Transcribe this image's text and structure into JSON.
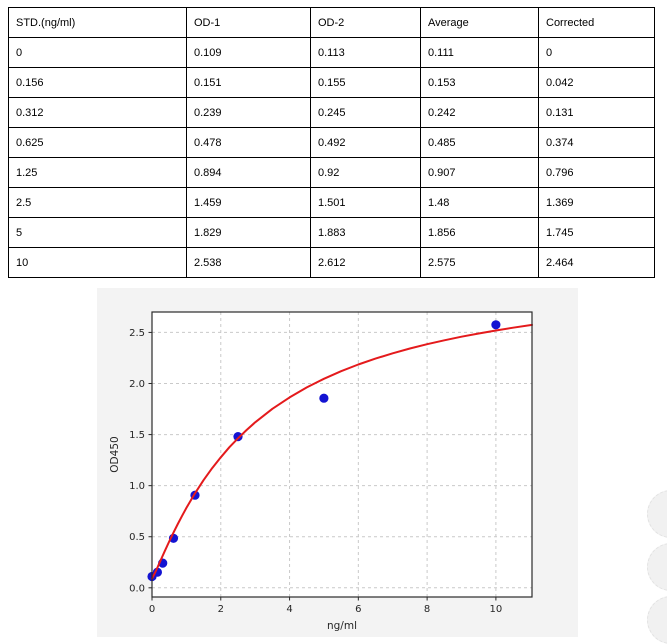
{
  "table": {
    "headers": [
      "STD.(ng/ml)",
      "OD-1",
      "OD-2",
      "Average",
      "Corrected"
    ],
    "rows": [
      [
        "0",
        "0.109",
        "0.113",
        "0.111",
        "0"
      ],
      [
        "0.156",
        "0.151",
        "0.155",
        "0.153",
        "0.042"
      ],
      [
        "0.312",
        "0.239",
        "0.245",
        "0.242",
        "0.131"
      ],
      [
        "0.625",
        "0.478",
        "0.492",
        "0.485",
        "0.374"
      ],
      [
        "1.25",
        "0.894",
        "0.92",
        "0.907",
        "0.796"
      ],
      [
        "2.5",
        "1.459",
        "1.501",
        "1.48",
        "1.369"
      ],
      [
        "5",
        "1.829",
        "1.883",
        "1.856",
        "1.745"
      ],
      [
        "10",
        "2.538",
        "2.612",
        "2.575",
        "2.464"
      ]
    ]
  },
  "chart_data": {
    "type": "scatter",
    "title": "",
    "xlabel": "ng/ml",
    "ylabel": "OD450",
    "xlim": [
      0,
      11.05
    ],
    "ylim": [
      -0.09,
      2.7
    ],
    "grid": true,
    "legend": "none",
    "x_ticks": {
      "values": [
        0,
        2,
        4,
        6,
        8,
        10
      ],
      "labels": [
        "0",
        "2",
        "4",
        "6",
        "8",
        "10"
      ]
    },
    "y_ticks": {
      "values": [
        0,
        0.5,
        1,
        1.5,
        2,
        2.5
      ],
      "labels": [
        "0.0",
        "0.5",
        "1.0",
        "1.5",
        "2.0",
        "2.5"
      ]
    },
    "series": [
      {
        "name": "standard-points",
        "type": "scatter",
        "color": "#1313d2",
        "marker_radius": 4.6,
        "x": [
          0,
          0.156,
          0.312,
          0.625,
          1.25,
          2.5,
          5,
          10
        ],
        "y": [
          0.111,
          0.153,
          0.242,
          0.485,
          0.907,
          1.48,
          1.856,
          2.575
        ]
      },
      {
        "name": "fit-curve",
        "type": "line",
        "color": "#e41a1c",
        "stroke_width": 2,
        "points": [
          [
            0,
            0.09
          ],
          [
            0.05,
            0.121
          ],
          [
            0.1,
            0.156
          ],
          [
            0.15,
            0.193
          ],
          [
            0.2,
            0.231
          ],
          [
            0.25,
            0.268
          ],
          [
            0.375,
            0.362
          ],
          [
            0.5,
            0.453
          ],
          [
            0.625,
            0.54
          ],
          [
            0.75,
            0.625
          ],
          [
            0.875,
            0.705
          ],
          [
            1,
            0.782
          ],
          [
            1.25,
            0.925
          ],
          [
            1.5,
            1.054
          ],
          [
            1.75,
            1.172
          ],
          [
            2,
            1.278
          ],
          [
            2.25,
            1.376
          ],
          [
            2.5,
            1.464
          ],
          [
            2.75,
            1.545
          ],
          [
            3,
            1.62
          ],
          [
            3.5,
            1.752
          ],
          [
            4,
            1.864
          ],
          [
            4.5,
            1.962
          ],
          [
            5,
            2.046
          ],
          [
            5.5,
            2.12
          ],
          [
            6,
            2.186
          ],
          [
            6.5,
            2.244
          ],
          [
            7,
            2.296
          ],
          [
            7.5,
            2.343
          ],
          [
            8,
            2.385
          ],
          [
            8.5,
            2.423
          ],
          [
            9,
            2.458
          ],
          [
            9.5,
            2.49
          ],
          [
            10,
            2.519
          ],
          [
            10.5,
            2.546
          ],
          [
            11.05,
            2.574
          ]
        ]
      }
    ],
    "colors": {
      "figure_bg": "#f3f3f3",
      "plot_bg": "#ffffff",
      "grid": "#c9c9c9",
      "axis": "#2a2a2a",
      "tick_label": "#262626"
    }
  }
}
